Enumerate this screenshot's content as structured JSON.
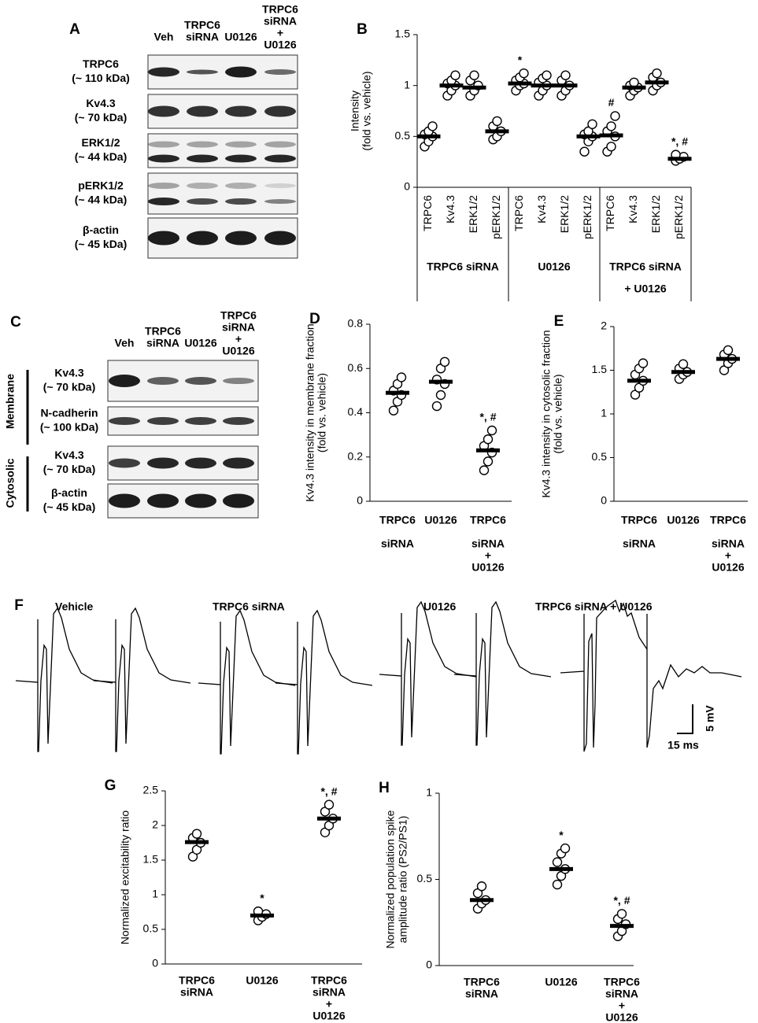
{
  "panel_a": {
    "letter": "A",
    "lanes": [
      [
        "Veh"
      ],
      [
        "TRPC6",
        "siRNA"
      ],
      [
        "U0126"
      ],
      [
        "TRPC6",
        "siRNA",
        "+",
        "U0126"
      ]
    ],
    "rows": [
      [
        "TRPC6",
        "(~ 110 kDa)"
      ],
      [
        "Kv4.3",
        "(~ 70 kDa)"
      ],
      [
        "ERK1/2",
        "(~ 44 kDa)"
      ],
      [
        "pERK1/2",
        "(~ 44 kDa)"
      ],
      [
        "β-actin",
        "(~ 45 kDa)"
      ]
    ]
  },
  "panel_c": {
    "letter": "C",
    "lanes": [
      [
        "Veh"
      ],
      [
        "TRPC6",
        "siRNA"
      ],
      [
        "U0126"
      ],
      [
        "TRPC6",
        "siRNA",
        "+",
        "U0126"
      ]
    ],
    "sections": [
      "Membrane",
      "Cytosolic"
    ],
    "rows": [
      [
        "Kv4.3",
        "(~ 70 kDa)"
      ],
      [
        "N-cadherin",
        "(~ 100 kDa)"
      ],
      [
        "Kv4.3",
        "(~ 70 kDa)"
      ],
      [
        "β-actin",
        "(~ 45 kDa)"
      ]
    ]
  },
  "panel_f": {
    "letter": "F",
    "conditions": [
      "Vehicle",
      "TRPC6 siRNA",
      "U0126",
      "TRPC6 siRNA + U0126"
    ],
    "scale_y": "5 mV",
    "scale_x": "15 ms"
  },
  "chart_data": [
    {
      "type": "dot",
      "letter": "B",
      "y_label": "Intensity",
      "y_label_sub": "(fold vs. vehicle)",
      "categories": [
        [
          "TRPC6"
        ],
        [
          "Kv4.3"
        ],
        [
          "ERK1/2"
        ],
        [
          "pERK1/2"
        ],
        [
          "TRPC6"
        ],
        [
          "Kv4.3"
        ],
        [
          "ERK1/2"
        ],
        [
          "pERK1/2"
        ],
        [
          "TRPC6"
        ],
        [
          "Kv4.3"
        ],
        [
          "ERK1/2"
        ],
        [
          "pERK1/2"
        ]
      ],
      "groups": [
        [
          "TRPC6 siRNA"
        ],
        [
          "U0126"
        ],
        [
          "TRPC6 siRNA",
          "+ U0126"
        ]
      ],
      "values": [
        0.5,
        1.0,
        0.98,
        0.55,
        1.02,
        1.0,
        1.0,
        0.5,
        0.51,
        0.98,
        1.03,
        0.28
      ],
      "points": [
        [
          0.4,
          0.45,
          0.5,
          0.52,
          0.55,
          0.6
        ],
        [
          0.9,
          0.95,
          1.0,
          1.02,
          1.05,
          1.1
        ],
        [
          0.9,
          0.95,
          1.0,
          1.05,
          1.1
        ],
        [
          0.47,
          0.5,
          0.55,
          0.6,
          0.65
        ],
        [
          0.95,
          1.0,
          1.02,
          1.05,
          1.08,
          1.12
        ],
        [
          0.9,
          0.95,
          1.0,
          1.03,
          1.07,
          1.1
        ],
        [
          0.9,
          0.95,
          1.0,
          1.05,
          1.1
        ],
        [
          0.35,
          0.45,
          0.5,
          0.52,
          0.55,
          0.62
        ],
        [
          0.35,
          0.4,
          0.5,
          0.55,
          0.6,
          0.7
        ],
        [
          0.9,
          0.95,
          0.98,
          1.0,
          1.03
        ],
        [
          0.95,
          1.0,
          1.03,
          1.08,
          1.12
        ],
        [
          0.26,
          0.28,
          0.3,
          0.32
        ]
      ],
      "annotations": [
        null,
        null,
        null,
        null,
        "*",
        null,
        null,
        null,
        "#",
        null,
        null,
        "*, #"
      ],
      "ylim": [
        0,
        1.5
      ],
      "yticks": [
        0,
        0.5,
        1,
        1.5
      ]
    },
    {
      "type": "dot",
      "letter": "D",
      "y_label": "Kv4.3 intensity in membrane fraction",
      "y_label_sub": "(fold vs. vehicle)",
      "categories": [
        [
          "TRPC6",
          "siRNA"
        ],
        [
          "U0126"
        ],
        [
          "TRPC6",
          "siRNA",
          "+",
          "U0126"
        ]
      ],
      "values": [
        0.49,
        0.54,
        0.23
      ],
      "points": [
        [
          0.41,
          0.45,
          0.48,
          0.5,
          0.53,
          0.56
        ],
        [
          0.43,
          0.48,
          0.53,
          0.55,
          0.6,
          0.63
        ],
        [
          0.14,
          0.18,
          0.22,
          0.25,
          0.28,
          0.32
        ]
      ],
      "annotations": [
        null,
        null,
        "*, #"
      ],
      "ylim": [
        0,
        0.8
      ],
      "yticks": [
        0,
        0.2,
        0.4,
        0.6,
        0.8
      ]
    },
    {
      "type": "dot",
      "letter": "E",
      "y_label": "Kv4.3 intensity in cytosolic fraction",
      "y_label_sub": "(fold vs. vehicle)",
      "categories": [
        [
          "TRPC6",
          "siRNA"
        ],
        [
          "U0126"
        ],
        [
          "TRPC6",
          "siRNA",
          "+",
          "U0126"
        ]
      ],
      "values": [
        1.38,
        1.48,
        1.63
      ],
      "points": [
        [
          1.22,
          1.3,
          1.38,
          1.45,
          1.52,
          1.58
        ],
        [
          1.4,
          1.45,
          1.48,
          1.52,
          1.57
        ],
        [
          1.5,
          1.58,
          1.63,
          1.68,
          1.73
        ]
      ],
      "annotations": [
        null,
        null,
        null
      ],
      "ylim": [
        0,
        2
      ],
      "yticks": [
        0,
        0.5,
        1,
        1.5,
        2
      ]
    },
    {
      "type": "dot",
      "letter": "G",
      "y_label": "Normalized excitability ratio",
      "categories": [
        [
          "TRPC6",
          "siRNA"
        ],
        [
          "U0126"
        ],
        [
          "TRPC6",
          "siRNA",
          "+",
          "U0126"
        ]
      ],
      "values": [
        1.76,
        0.7,
        2.1
      ],
      "points": [
        [
          1.55,
          1.65,
          1.75,
          1.82,
          1.88
        ],
        [
          0.63,
          0.68,
          0.72,
          0.76
        ],
        [
          1.9,
          2.0,
          2.1,
          2.2,
          2.3
        ]
      ],
      "annotations": [
        null,
        "*",
        "*, #"
      ],
      "ylim": [
        0,
        2.5
      ],
      "yticks": [
        0,
        0.5,
        1,
        1.5,
        2,
        2.5
      ]
    },
    {
      "type": "dot",
      "letter": "H",
      "y_label": "Normalized population spike",
      "y_label_sub": "amplitude ratio (PS2/PS1)",
      "categories": [
        [
          "TRPC6",
          "siRNA"
        ],
        [
          "U0126"
        ],
        [
          "TRPC6",
          "siRNA",
          "+",
          "U0126"
        ]
      ],
      "values": [
        0.38,
        0.56,
        0.23
      ],
      "points": [
        [
          0.33,
          0.36,
          0.38,
          0.42,
          0.46
        ],
        [
          0.47,
          0.52,
          0.56,
          0.6,
          0.65,
          0.68
        ],
        [
          0.17,
          0.2,
          0.24,
          0.27,
          0.3
        ]
      ],
      "annotations": [
        null,
        "*",
        "*, #"
      ],
      "ylim": [
        0,
        1
      ],
      "yticks": [
        0,
        0.5,
        1
      ]
    }
  ]
}
